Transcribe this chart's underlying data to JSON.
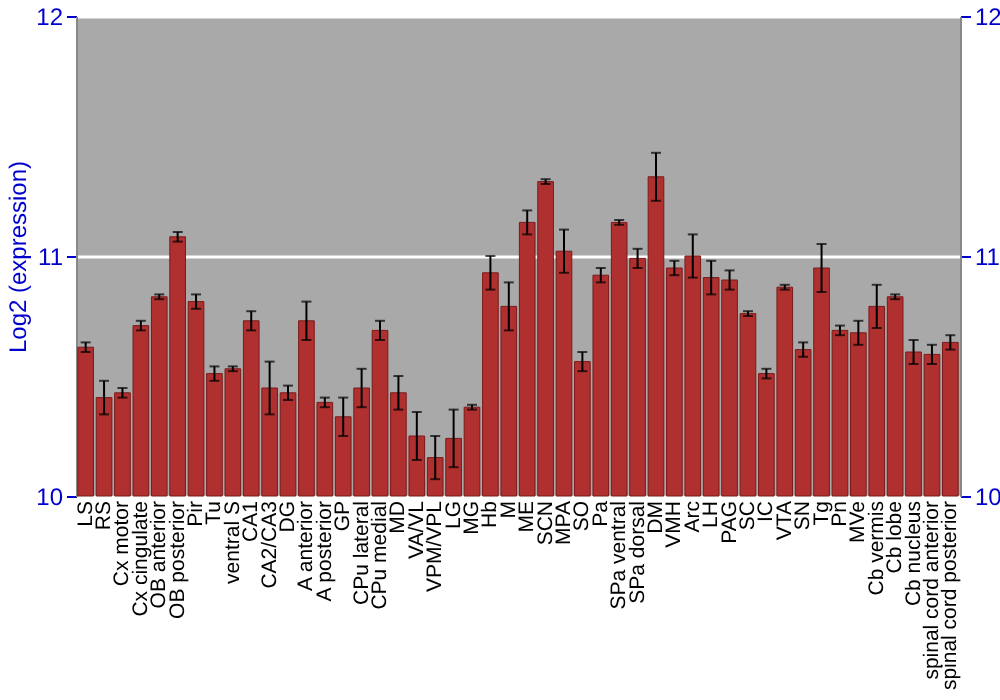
{
  "chart_data": {
    "type": "bar",
    "ylabel": "Log2 (expression)",
    "categories": [
      "LS",
      "RS",
      "Cx motor",
      "Cx cingulate",
      "OB anterior",
      "OB posterior",
      "Pir",
      "Tu",
      "ventral S",
      "CA1",
      "CA2/CA3",
      "DG",
      "A anterior",
      "A posterior",
      "GP",
      "CPu lateral",
      "CPu medial",
      "MD",
      "VA/VL",
      "VPM/VPL",
      "LG",
      "MG",
      "Hb",
      "M",
      "ME",
      "SCN",
      "MPA",
      "SO",
      "Pa",
      "SPa ventral",
      "SPa dorsal",
      "DM",
      "VMH",
      "Arc",
      "LH",
      "PAG",
      "SC",
      "IC",
      "VTA",
      "SN",
      "Tg",
      "Pn",
      "MVe",
      "Cb vermis",
      "Cb lobe",
      "Cb nucleus",
      "spinal cord anterior",
      "spinal cord posterior"
    ],
    "series": [
      {
        "color": "#b03030",
        "values": [
          10.62,
          10.41,
          10.43,
          10.71,
          10.83,
          11.08,
          10.81,
          10.51,
          10.53,
          10.73,
          10.45,
          10.43,
          10.73,
          10.39,
          10.33,
          10.45,
          10.69,
          10.43,
          10.25,
          10.16,
          10.24,
          10.37,
          10.93,
          10.79,
          11.14,
          11.31,
          11.02,
          10.56,
          10.92,
          11.14,
          10.99,
          11.33,
          10.95,
          11.0,
          10.91,
          10.9,
          10.76,
          10.51,
          10.87,
          10.61,
          10.95,
          10.69,
          10.68,
          10.79,
          10.83,
          10.6,
          10.59,
          10.64
        ],
        "errors": [
          0.02,
          0.07,
          0.02,
          0.02,
          0.01,
          0.02,
          0.03,
          0.03,
          0.01,
          0.04,
          0.11,
          0.03,
          0.08,
          0.02,
          0.08,
          0.08,
          0.04,
          0.07,
          0.1,
          0.09,
          0.12,
          0.01,
          0.07,
          0.1,
          0.05,
          0.01,
          0.09,
          0.04,
          0.03,
          0.01,
          0.04,
          0.1,
          0.03,
          0.09,
          0.07,
          0.04,
          0.01,
          0.02,
          0.01,
          0.03,
          0.1,
          0.02,
          0.05,
          0.09,
          0.01,
          0.05,
          0.04,
          0.03
        ]
      }
    ],
    "ylim": [
      10,
      12
    ],
    "yticks": [
      10,
      11,
      12
    ],
    "y2lim": [
      10,
      12
    ],
    "y2ticks": [
      10,
      11,
      12
    ],
    "grid": "y"
  }
}
